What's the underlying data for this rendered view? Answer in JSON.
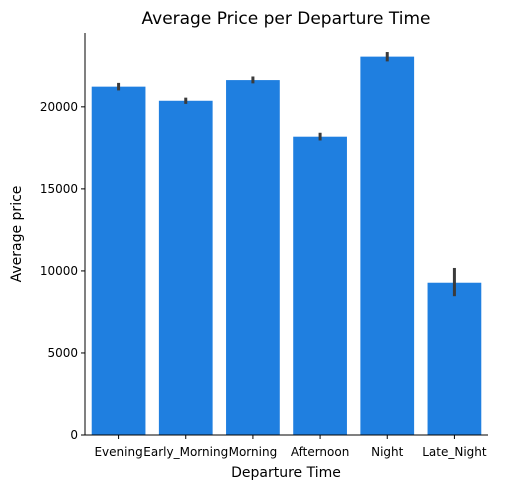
{
  "chart_data": {
    "type": "bar",
    "title": "Average Price per Departure Time",
    "xlabel": "Departure Time",
    "ylabel": "Average price",
    "categories": [
      "Evening",
      "Early_Morning",
      "Morning",
      "Afternoon",
      "Night",
      "Late_Night"
    ],
    "values": [
      21230,
      20370,
      21630,
      18180,
      23060,
      9280
    ],
    "error_low": [
      21000,
      20180,
      21430,
      17950,
      22770,
      8460
    ],
    "error_high": [
      21460,
      20560,
      21850,
      18420,
      23340,
      10180
    ],
    "ylim": [
      0,
      24500
    ],
    "yticks": [
      0,
      5000,
      10000,
      15000,
      20000
    ],
    "grid": false,
    "bar_color": "#1f7fe0",
    "error_color": "#3b3b3b"
  }
}
